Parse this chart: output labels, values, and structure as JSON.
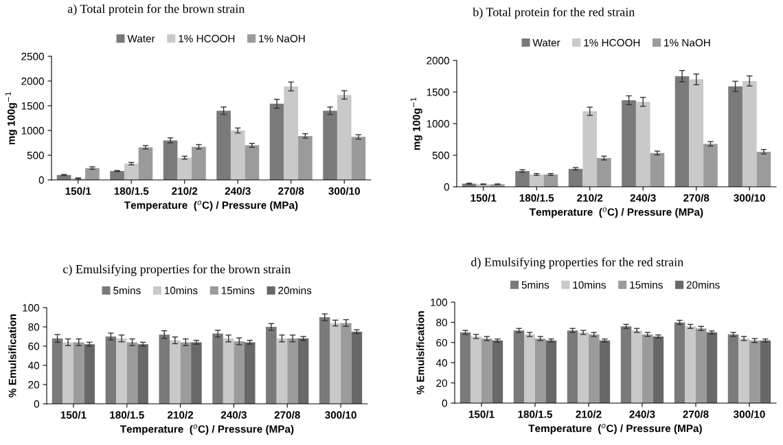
{
  "chart_data": [
    {
      "type": "bar",
      "title": "a) Total protein for the brown strain",
      "xlabel": "Temperature  ($^{o}$C) / Pressure (MPa)",
      "ylabel": "mg 100g$^{−1}$",
      "categories": [
        "150/1",
        "180/1.5",
        "210/2",
        "240/3",
        "270/8",
        "300/10"
      ],
      "ylim": [
        0,
        2500
      ],
      "yticks": [
        0,
        500,
        1000,
        1500,
        2000,
        2500
      ],
      "grid": false,
      "legend": "top",
      "series": [
        {
          "name": "Water",
          "color": "#7a7a7a",
          "values": [
            100,
            180,
            800,
            1400,
            1540,
            1400
          ],
          "errors": [
            10,
            10,
            50,
            75,
            90,
            75
          ]
        },
        {
          "name": "1% HCOOH",
          "color": "#c8c9c8",
          "values": [
            30,
            330,
            450,
            1000,
            1890,
            1720
          ],
          "errors": [
            10,
            25,
            30,
            50,
            90,
            85
          ]
        },
        {
          "name": "1% NaOH",
          "color": "#9a9b9a",
          "values": [
            240,
            660,
            670,
            700,
            890,
            870
          ],
          "errors": [
            25,
            35,
            45,
            40,
            45,
            45
          ]
        }
      ]
    },
    {
      "type": "bar",
      "title": "b) Total protein for the red strain",
      "xlabel": "Temperature  ($^{o}$C) / Pressure (MPa)",
      "ylabel": "mg 100g$^{−1}$",
      "categories": [
        "150/1",
        "180/1.5",
        "210/2",
        "240/3",
        "270/8",
        "300/10"
      ],
      "ylim": [
        0,
        2000
      ],
      "yticks": [
        0,
        500,
        1000,
        1500,
        2000
      ],
      "grid": false,
      "legend": "top",
      "series": [
        {
          "name": "Water",
          "color": "#7a7a7a",
          "values": [
            50,
            250,
            285,
            1370,
            1750,
            1590
          ],
          "errors": [
            8,
            20,
            20,
            70,
            90,
            80
          ]
        },
        {
          "name": "1% HCOOH",
          "color": "#c8c9c8",
          "values": [
            40,
            195,
            1195,
            1345,
            1700,
            1675
          ],
          "errors": [
            5,
            15,
            65,
            70,
            85,
            80
          ]
        },
        {
          "name": "1% NaOH",
          "color": "#9a9b9a",
          "values": [
            40,
            195,
            455,
            535,
            680,
            555
          ],
          "errors": [
            5,
            15,
            30,
            30,
            35,
            35
          ]
        }
      ]
    },
    {
      "type": "bar",
      "title": "c) Emulsifying properties for the brown strain",
      "xlabel": "Temperature  ($^{o}$C) / Pressure (MPa)",
      "ylabel": "% Emulsification",
      "categories": [
        "150/1",
        "180/1.5",
        "210/2",
        "240/3",
        "270/8",
        "300/10"
      ],
      "ylim": [
        0,
        100
      ],
      "yticks": [
        0,
        20,
        40,
        60,
        80,
        100
      ],
      "grid": false,
      "legend": "top",
      "series": [
        {
          "name": "5mins",
          "color": "#7a7a7a",
          "values": [
            68,
            70,
            72,
            73,
            80,
            90
          ],
          "errors": [
            4,
            3.5,
            4,
            3.5,
            3.5,
            3.5
          ]
        },
        {
          "name": "10mins",
          "color": "#c8c9c8",
          "values": [
            64,
            68,
            66,
            68,
            68,
            84
          ],
          "errors": [
            3.5,
            3.5,
            3.5,
            3.5,
            3.5,
            3
          ]
        },
        {
          "name": "15mins",
          "color": "#9a9b9a",
          "values": [
            64,
            64,
            64,
            65,
            68,
            84
          ],
          "errors": [
            3.5,
            3.5,
            3.5,
            3.5,
            3.5,
            3.5
          ]
        },
        {
          "name": "20mins",
          "color": "#686868",
          "values": [
            62,
            62,
            64,
            64,
            68,
            75
          ],
          "errors": [
            2,
            2,
            2,
            2,
            2,
            2
          ]
        }
      ]
    },
    {
      "type": "bar",
      "title": "d) Emulsifying properties for the red strain",
      "xlabel": "Temperature  ($^{o}$C) / Pressure (MPa)",
      "ylabel": "% Emulsification",
      "categories": [
        "150/1",
        "180/1.5",
        "210/2",
        "240/3",
        "270/8",
        "300/10"
      ],
      "ylim": [
        0,
        100
      ],
      "yticks": [
        0,
        20,
        40,
        60,
        80,
        100
      ],
      "grid": false,
      "legend": "top",
      "series": [
        {
          "name": "5mins",
          "color": "#7a7a7a",
          "values": [
            70,
            72,
            72,
            76,
            80,
            68
          ],
          "errors": [
            2,
            2,
            2,
            2,
            2,
            2
          ]
        },
        {
          "name": "10mins",
          "color": "#c8c9c8",
          "values": [
            66,
            68,
            70,
            72,
            76,
            64
          ],
          "errors": [
            2,
            2,
            2,
            2,
            2,
            2
          ]
        },
        {
          "name": "15mins",
          "color": "#9a9b9a",
          "values": [
            64,
            64,
            68,
            68,
            74,
            62
          ],
          "errors": [
            2,
            2,
            2,
            2,
            2,
            2
          ]
        },
        {
          "name": "20mins",
          "color": "#686868",
          "values": [
            62,
            62,
            62,
            66,
            70,
            62
          ],
          "errors": [
            1.5,
            1.5,
            1.5,
            1.5,
            1.5,
            1.5
          ]
        }
      ]
    }
  ]
}
